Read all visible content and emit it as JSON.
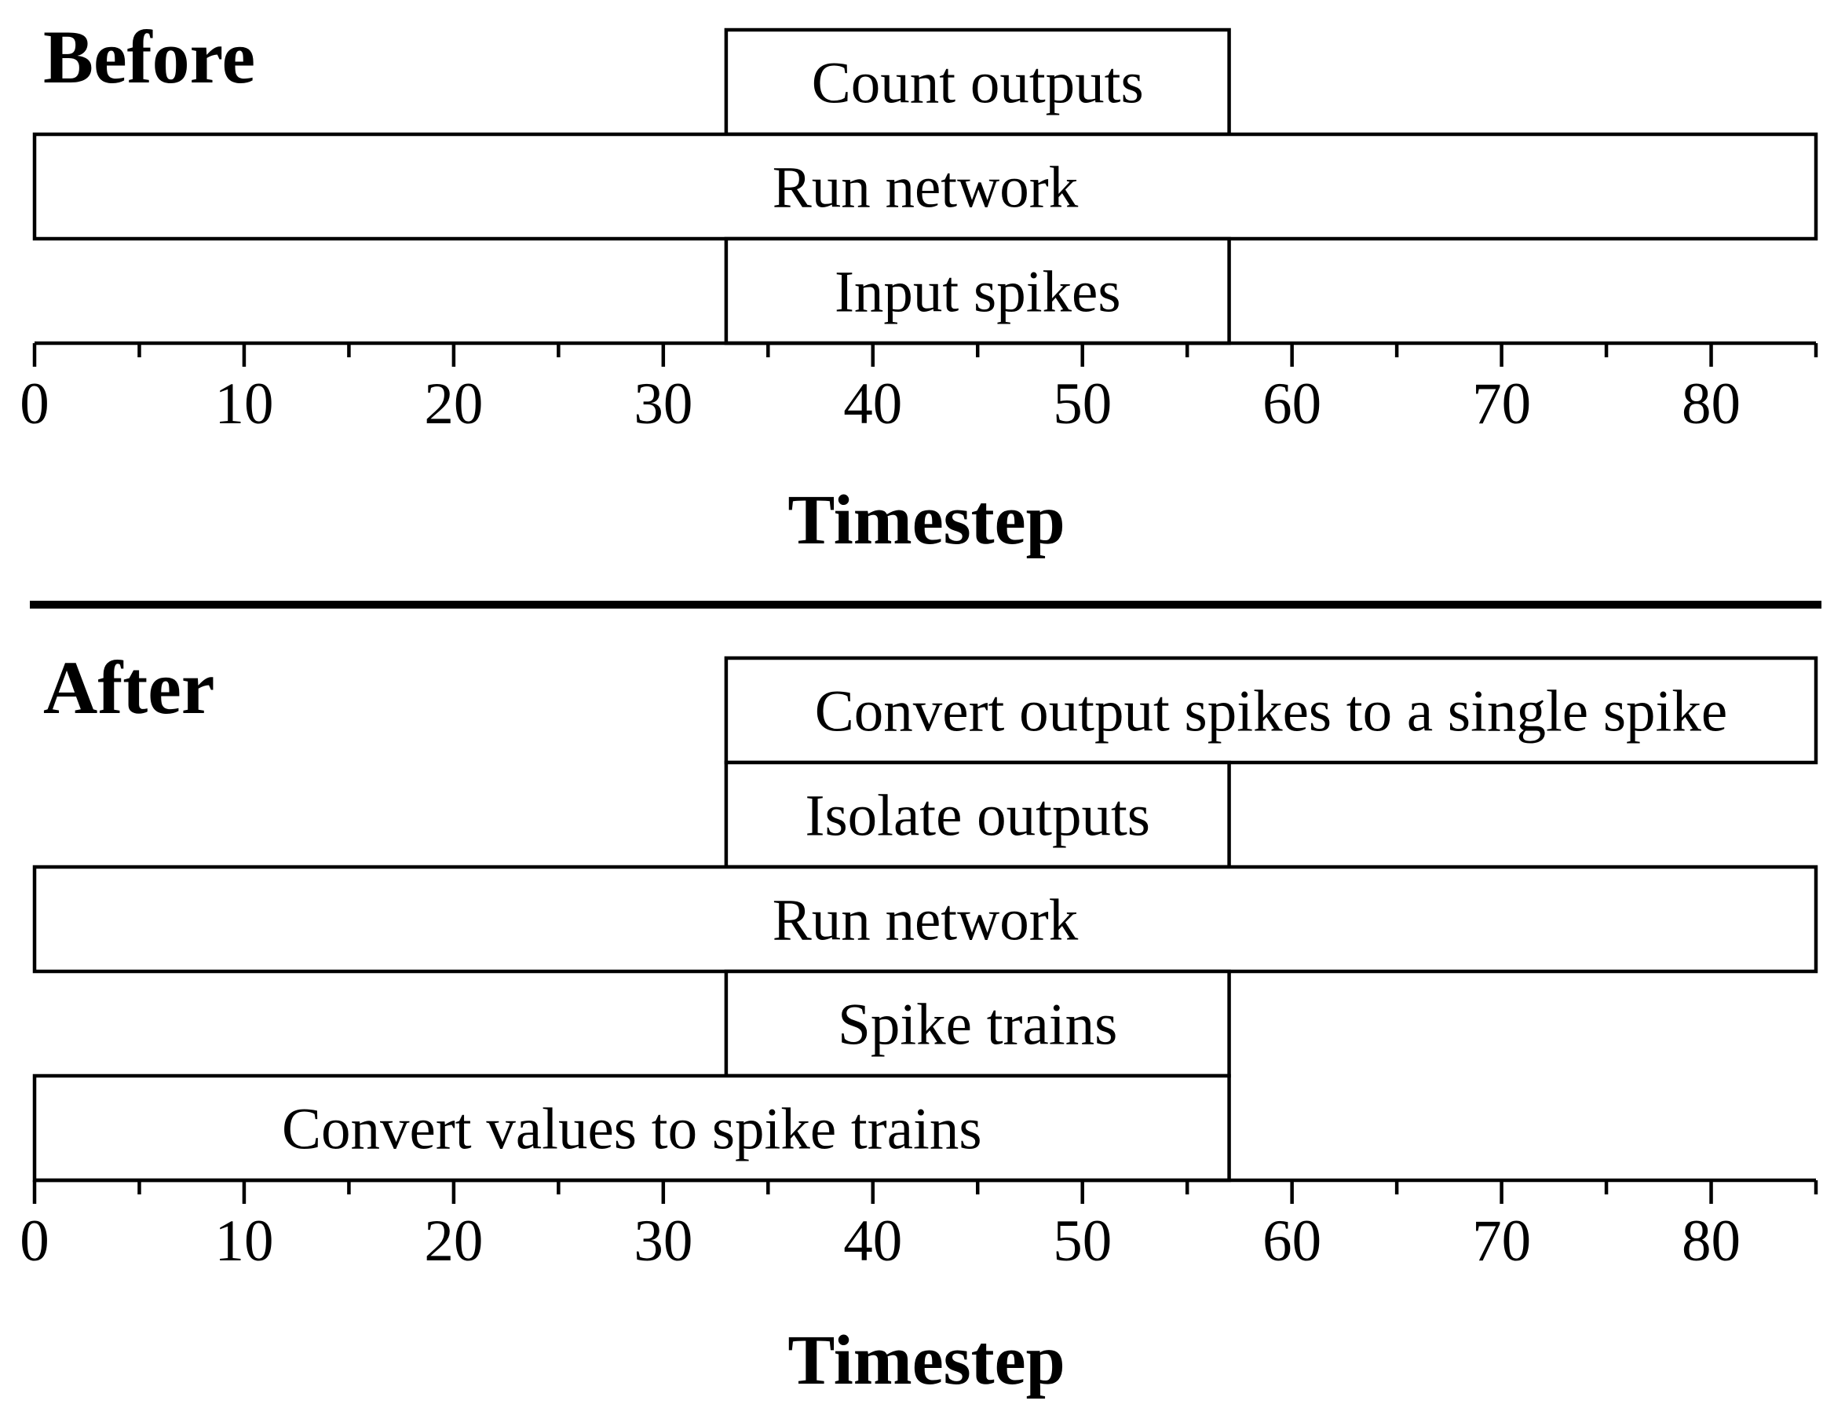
{
  "before": {
    "title": "Before",
    "axis_title": "Timestep",
    "boxes": [
      {
        "label": "Count outputs",
        "start": 33,
        "end": 57,
        "level": 3
      },
      {
        "label": "Run network",
        "start": 0,
        "end": 85,
        "level": 2
      },
      {
        "label": "Input spikes",
        "start": 33,
        "end": 57,
        "level": 1
      }
    ]
  },
  "after": {
    "title": "After",
    "axis_title": "Timestep",
    "boxes": [
      {
        "label": "Convert output spikes to a single spike",
        "start": 33,
        "end": 85,
        "level": 5
      },
      {
        "label": "Isolate outputs",
        "start": 33,
        "end": 57,
        "level": 4
      },
      {
        "label": "Run network",
        "start": 0,
        "end": 85,
        "level": 3
      },
      {
        "label": "Spike trains",
        "start": 33,
        "end": 57,
        "level": 2
      },
      {
        "label": "Convert values to spike trains",
        "start": 0,
        "end": 57,
        "level": 1
      }
    ]
  },
  "axis": {
    "min": 0,
    "max": 85,
    "major_ticks": [
      0,
      10,
      20,
      30,
      40,
      50,
      60,
      70,
      80
    ],
    "minor_ticks": [
      5,
      15,
      25,
      35,
      45,
      55,
      65,
      75,
      85
    ],
    "tick_labels": [
      "0",
      "10",
      "20",
      "30",
      "40",
      "50",
      "60",
      "70",
      "80"
    ]
  },
  "colors": {
    "stroke": "#000000",
    "fill": "#ffffff"
  }
}
